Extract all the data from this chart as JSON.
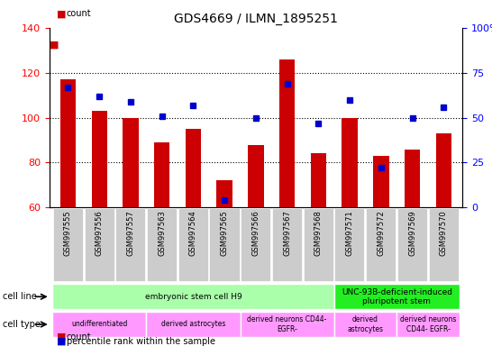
{
  "title": "GDS4669 / ILMN_1895251",
  "samples": [
    "GSM997555",
    "GSM997556",
    "GSM997557",
    "GSM997563",
    "GSM997564",
    "GSM997565",
    "GSM997566",
    "GSM997567",
    "GSM997568",
    "GSM997571",
    "GSM997572",
    "GSM997569",
    "GSM997570"
  ],
  "count_values": [
    117,
    103,
    100,
    89,
    95,
    72,
    88,
    126,
    84,
    100,
    83,
    86,
    93
  ],
  "percentile_values": [
    67,
    62,
    59,
    51,
    57,
    4,
    50,
    69,
    47,
    60,
    22,
    50,
    56
  ],
  "ylim_left": [
    60,
    140
  ],
  "ylim_right": [
    0,
    100
  ],
  "yticks_left": [
    60,
    80,
    100,
    120,
    140
  ],
  "yticks_right": [
    0,
    25,
    50,
    75,
    100
  ],
  "ytick_labels_right": [
    "0",
    "25",
    "50",
    "75",
    "100%"
  ],
  "bar_color": "#cc0000",
  "percentile_color": "#0000cc",
  "grid_color": "#000000",
  "bar_width": 0.5,
  "cell_line_groups": [
    {
      "label": "embryonic stem cell H9",
      "start": 0,
      "end": 8,
      "color": "#aaffaa"
    },
    {
      "label": "UNC-93B-deficient-induced\npluripotent stem",
      "start": 9,
      "end": 12,
      "color": "#22ee22"
    }
  ],
  "cell_type_groups": [
    {
      "label": "undifferentiated",
      "start": 0,
      "end": 2,
      "color": "#ff99ff"
    },
    {
      "label": "derived astrocytes",
      "start": 3,
      "end": 5,
      "color": "#ff99ff"
    },
    {
      "label": "derived neurons CD44-\nEGFR-",
      "start": 6,
      "end": 8,
      "color": "#ff99ff"
    },
    {
      "label": "derived\nastrocytes",
      "start": 9,
      "end": 10,
      "color": "#ff99ff"
    },
    {
      "label": "derived neurons\nCD44- EGFR-",
      "start": 11,
      "end": 12,
      "color": "#ff99ff"
    }
  ],
  "legend_count_color": "#cc0000",
  "legend_percentile_color": "#0000cc",
  "background_color": "#ffffff",
  "tick_bg_color": "#cccccc",
  "hgrid_ticks": [
    80,
    100,
    120
  ]
}
